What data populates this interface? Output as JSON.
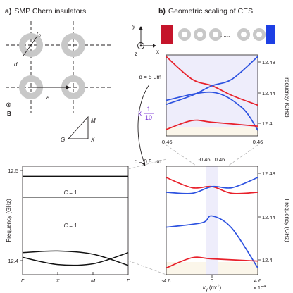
{
  "panel_a": {
    "title_letter": "a)",
    "title": "SMP Chern insulators",
    "lattice": {
      "r_label": "r",
      "r_sub": "o",
      "d_label": "d",
      "a_label": "a",
      "b_label": "B",
      "b_symbol": "⊗"
    },
    "bz": {
      "G": "G",
      "M": "M",
      "X": "X"
    }
  },
  "panel_b": {
    "title_letter": "b)",
    "title": "Geometric scaling of CES",
    "axes": {
      "y": "y",
      "x": "x",
      "z": "z",
      "dots": "......"
    },
    "d_top": "d = 5 μm",
    "d_bottom": "d = 0.5 μm",
    "scale_prefix": "x",
    "scale_num": "1",
    "scale_den": "10",
    "top_range": {
      "left": "-0.46",
      "right": "0.46"
    },
    "bottom_range": {
      "left": "-0.46",
      "right": "0.46"
    },
    "xlabel_main": "k",
    "xlabel_sub": "y",
    "xlabel_unit": "(m",
    "xlabel_exp": "-1",
    "xlabel_close": ")",
    "x_multiplier": "x 10",
    "x_multiplier_exp": "4",
    "ylabel": "Frequency (GHz)"
  },
  "colors": {
    "red": "#e8202a",
    "blue": "#2d52e0",
    "accent_purple": "#7b35d6",
    "ring": "#c8c8c8",
    "bg_lavender": "#eeedfb",
    "bg_cream": "#fbf6ea"
  },
  "chart_data": [
    {
      "type": "line",
      "id": "band-diagram",
      "x": [
        "Γ",
        "X",
        "M",
        "Γ"
      ],
      "ylabel": "Frequency (GHz)",
      "yticks": [
        "12.5",
        "12.4"
      ],
      "annotations": [
        "C = 1",
        "C = 1"
      ],
      "chern_symbol": "C",
      "chern_value": "= 1",
      "series": [
        {
          "values": [
            12.492,
            12.492,
            12.492,
            12.492
          ]
        },
        {
          "values": [
            12.466,
            12.466,
            12.466,
            12.466
          ]
        },
        {
          "values": [
            12.396,
            12.398,
            12.394,
            12.38
          ]
        },
        {
          "values": [
            12.39,
            12.381,
            12.382,
            12.396
          ]
        }
      ]
    },
    {
      "type": "line",
      "id": "ces-top",
      "x": [
        "-0.46",
        "0.46"
      ],
      "ylabel": "Frequency (GHz)",
      "yticks": [
        "12.48",
        "12.44",
        "12.4"
      ],
      "series": [
        {
          "color": "red",
          "values": [
            [
              -0.46,
              12.488
            ],
            [
              -0.2,
              12.46
            ],
            [
              0,
              12.452
            ],
            [
              0.2,
              12.44
            ],
            [
              0.46,
              12.428
            ]
          ]
        },
        {
          "color": "blue",
          "values": [
            [
              -0.46,
              12.429
            ],
            [
              -0.2,
              12.44
            ],
            [
              0,
              12.452
            ],
            [
              0.2,
              12.46
            ],
            [
              0.46,
              12.488
            ]
          ]
        },
        {
          "color": "blue",
          "values": [
            [
              -0.46,
              12.434
            ],
            [
              0,
              12.444
            ],
            [
              0.3,
              12.425
            ],
            [
              0.46,
              12.397
            ]
          ]
        },
        {
          "color": "red",
          "values": [
            [
              -0.46,
              12.398
            ],
            [
              -0.2,
              12.409
            ],
            [
              0,
              12.407
            ],
            [
              0.46,
              12.402
            ]
          ]
        }
      ]
    },
    {
      "type": "line",
      "id": "ces-bottom",
      "xlabel": "ky (m-1) x 10^4",
      "x": [
        "-4.6",
        "0",
        "4.6"
      ],
      "ylabel": "Frequency (GHz)",
      "yticks": [
        "12.48",
        "12.44",
        "12.4"
      ],
      "series": [
        {
          "color": "red",
          "values": [
            [
              -4.6,
              12.478
            ],
            [
              -2,
              12.469
            ],
            [
              0,
              12.47
            ],
            [
              2,
              12.464
            ],
            [
              4.6,
              12.465
            ]
          ]
        },
        {
          "color": "blue",
          "values": [
            [
              -4.6,
              12.465
            ],
            [
              -2,
              12.464
            ],
            [
              0,
              12.47
            ],
            [
              2,
              12.469
            ],
            [
              4.6,
              12.478
            ]
          ]
        },
        {
          "color": "blue",
          "values": [
            [
              -4.6,
              12.434
            ],
            [
              -1,
              12.438
            ],
            [
              0,
              12.444
            ],
            [
              2,
              12.433
            ],
            [
              4.6,
              12.398
            ]
          ]
        },
        {
          "color": "red",
          "values": [
            [
              -4.6,
              12.398
            ],
            [
              -2,
              12.407
            ],
            [
              0,
              12.406
            ],
            [
              4.6,
              12.404
            ]
          ]
        }
      ]
    }
  ]
}
